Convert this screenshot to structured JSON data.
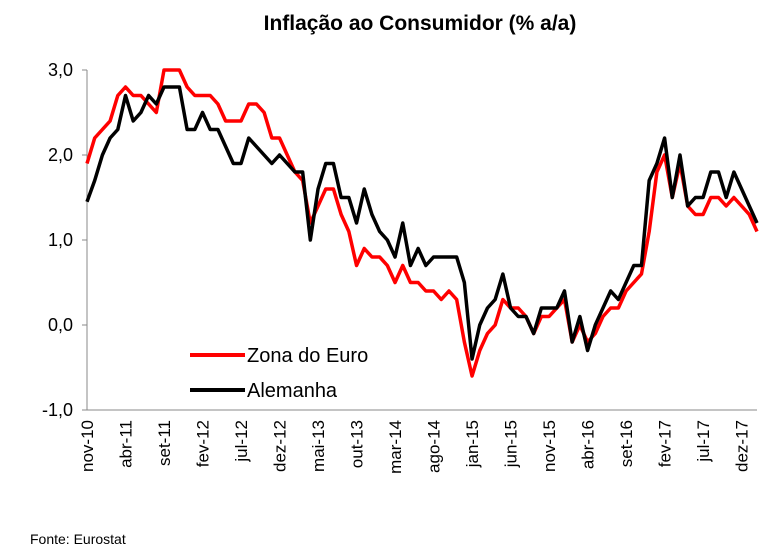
{
  "chart_data": {
    "type": "line",
    "title": "Inflação ao Consumidor (% a/a)",
    "source": "Fonte: Eurostat",
    "categories": [
      "nov-10",
      null,
      null,
      null,
      null,
      "abr-11",
      null,
      null,
      null,
      null,
      "set-11",
      null,
      null,
      null,
      null,
      "fev-12",
      null,
      null,
      null,
      null,
      "jul-12",
      null,
      null,
      null,
      null,
      "dez-12",
      null,
      null,
      null,
      null,
      "mai-13",
      null,
      null,
      null,
      null,
      "out-13",
      null,
      null,
      null,
      null,
      "mar-14",
      null,
      null,
      null,
      null,
      "ago-14",
      null,
      null,
      null,
      null,
      "jan-15",
      null,
      null,
      null,
      null,
      "jun-15",
      null,
      null,
      null,
      null,
      "nov-15",
      null,
      null,
      null,
      null,
      "abr-16",
      null,
      null,
      null,
      null,
      "set-16",
      null,
      null,
      null,
      null,
      "fev-17",
      null,
      null,
      null,
      null,
      "jul-17",
      null,
      null,
      null,
      null,
      "dez-17",
      null,
      null
    ],
    "series": [
      {
        "name": "Zona do Euro",
        "color": "#ff0000",
        "values": [
          1.9,
          2.2,
          2.3,
          2.4,
          2.7,
          2.8,
          2.7,
          2.7,
          2.6,
          2.5,
          3.0,
          3.0,
          3.0,
          2.8,
          2.7,
          2.7,
          2.7,
          2.6,
          2.4,
          2.4,
          2.4,
          2.6,
          2.6,
          2.5,
          2.2,
          2.2,
          2.0,
          1.8,
          1.7,
          1.2,
          1.4,
          1.6,
          1.6,
          1.3,
          1.1,
          0.7,
          0.9,
          0.8,
          0.8,
          0.7,
          0.5,
          0.7,
          0.5,
          0.5,
          0.4,
          0.4,
          0.3,
          0.4,
          0.3,
          -0.2,
          -0.6,
          -0.3,
          -0.1,
          0.0,
          0.3,
          0.2,
          0.2,
          0.1,
          -0.1,
          0.1,
          0.1,
          0.2,
          0.3,
          -0.2,
          0.0,
          -0.2,
          -0.1,
          0.1,
          0.2,
          0.2,
          0.4,
          0.5,
          0.6,
          1.1,
          1.8,
          2.0,
          1.5,
          1.9,
          1.4,
          1.3,
          1.3,
          1.5,
          1.5,
          1.4,
          1.5,
          1.4,
          1.3,
          1.1
        ]
      },
      {
        "name": "Alemanha",
        "color": "#000000",
        "values": [
          1.45,
          1.7,
          2.0,
          2.2,
          2.3,
          2.7,
          2.4,
          2.5,
          2.7,
          2.6,
          2.8,
          2.8,
          2.8,
          2.3,
          2.3,
          2.5,
          2.3,
          2.3,
          2.1,
          1.9,
          1.9,
          2.2,
          2.1,
          2.0,
          1.9,
          2.0,
          1.9,
          1.8,
          1.8,
          1.0,
          1.6,
          1.9,
          1.9,
          1.5,
          1.5,
          1.2,
          1.6,
          1.3,
          1.1,
          1.0,
          0.8,
          1.2,
          0.7,
          0.9,
          0.7,
          0.8,
          0.8,
          0.8,
          0.8,
          0.5,
          -0.4,
          0.0,
          0.2,
          0.3,
          0.6,
          0.2,
          0.1,
          0.1,
          -0.1,
          0.2,
          0.2,
          0.2,
          0.4,
          -0.2,
          0.1,
          -0.3,
          0.0,
          0.2,
          0.4,
          0.3,
          0.5,
          0.7,
          0.7,
          1.7,
          1.9,
          2.2,
          1.5,
          2.0,
          1.4,
          1.5,
          1.5,
          1.8,
          1.8,
          1.5,
          1.8,
          1.6,
          1.4,
          1.2
        ]
      }
    ],
    "ylim": [
      -1,
      3
    ],
    "yticks": [
      {
        "value": -1,
        "label": "-1,0"
      },
      {
        "value": 0,
        "label": "0,0"
      },
      {
        "value": 1,
        "label": "1,0"
      },
      {
        "value": 2,
        "label": "2,0"
      },
      {
        "value": 3,
        "label": "3,0"
      }
    ],
    "legend": "lower left"
  }
}
